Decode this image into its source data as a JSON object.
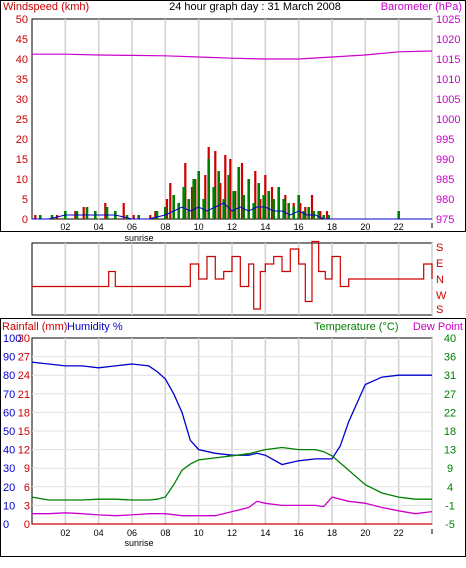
{
  "chart_data": [
    {
      "type": "bar",
      "title": "24 hour graph day : 31 March 2008",
      "left_axis": {
        "label": "Windspeed (kmh)",
        "range": [
          0,
          50
        ],
        "ticks": [
          "0",
          "5",
          "10",
          "15",
          "20",
          "25",
          "30",
          "35",
          "40",
          "45",
          "50"
        ],
        "color": "#cc0000"
      },
      "right_axis": {
        "label": "Barometer (hPa)",
        "range": [
          975,
          1025
        ],
        "ticks": [
          "975",
          "980",
          "985",
          "990",
          "995",
          "1000",
          "1005",
          "1010",
          "1015",
          "1020",
          "1025"
        ],
        "color": "#cc00cc"
      },
      "x_ticks": [
        "02",
        "04",
        "06",
        "08",
        "10",
        "12",
        "14",
        "16",
        "18",
        "20",
        "22"
      ],
      "sunrise_label": "sunrise",
      "grid": true,
      "series": [
        {
          "role": "barometer",
          "axis": "right",
          "color": "#cc00cc",
          "x": [
            0,
            2,
            4,
            6,
            8,
            10,
            12,
            14,
            16,
            18,
            20,
            22,
            24
          ],
          "values": [
            1016.2,
            1016.2,
            1016.0,
            1015.9,
            1015.8,
            1015.5,
            1015.2,
            1015.0,
            1015.0,
            1015.5,
            1016.0,
            1016.8,
            1017.0
          ]
        },
        {
          "role": "gust",
          "axis": "left",
          "color": "#cc0000",
          "x": [
            0.2,
            1.5,
            2.6,
            3.1,
            4.4,
            5.5,
            6.1,
            7.1,
            7.4,
            8.1,
            8.3,
            9.2,
            9.6,
            9.8,
            10.0,
            10.4,
            10.6,
            11.0,
            11.3,
            11.6,
            11.9,
            12.2,
            12.6,
            13.0,
            13.4,
            13.7,
            14.0,
            14.4,
            14.8,
            15.2,
            15.7,
            16.1,
            16.4,
            16.8,
            17.3,
            17.7,
            22.0
          ],
          "values": [
            1,
            1,
            2,
            3,
            4,
            4,
            1,
            1,
            2,
            5,
            9,
            14,
            8,
            10,
            8,
            11,
            18,
            17,
            9,
            16,
            15,
            7,
            14,
            4,
            12,
            5,
            11,
            8,
            6,
            6,
            4,
            4,
            3,
            6,
            2,
            2,
            1
          ]
        },
        {
          "role": "average",
          "axis": "left",
          "color": "#008000",
          "x": [
            0.5,
            1.2,
            2.0,
            2.7,
            3.3,
            3.8,
            4.5,
            5.0,
            5.7,
            6.4,
            7.5,
            8.0,
            8.5,
            8.8,
            9.1,
            9.4,
            9.7,
            10.0,
            10.3,
            10.6,
            10.9,
            11.2,
            11.5,
            11.8,
            12.1,
            12.4,
            12.7,
            13.0,
            13.3,
            13.6,
            13.9,
            14.2,
            14.5,
            14.8,
            15.1,
            15.4,
            15.7,
            16.0,
            16.3,
            16.6,
            16.9,
            17.2,
            17.5,
            17.8,
            22.0
          ],
          "values": [
            1,
            1,
            2,
            2,
            3,
            2,
            3,
            2,
            1,
            1,
            2,
            3,
            6,
            4,
            8,
            5,
            10,
            12,
            5,
            15,
            8,
            12,
            5,
            11,
            7,
            13,
            6,
            10,
            4,
            9,
            6,
            7,
            5,
            8,
            5,
            4,
            3,
            6,
            2,
            3,
            2,
            2,
            1,
            1,
            2
          ]
        },
        {
          "role": "direction-detail",
          "axis": "left",
          "color": "#0000cc",
          "x": [
            0,
            1,
            2,
            3,
            4,
            5,
            6,
            7,
            8,
            8.5,
            9,
            9.5,
            10,
            10.5,
            11,
            11.5,
            12,
            12.5,
            13,
            13.5,
            14,
            14.5,
            15,
            15.5,
            16,
            16.5,
            17,
            17.5,
            18,
            19,
            20,
            21,
            22,
            23,
            24
          ],
          "values": [
            0,
            0,
            1,
            1,
            1,
            1,
            0,
            0,
            1,
            2,
            3,
            2,
            3,
            2,
            3,
            4,
            2,
            3,
            2,
            3,
            3,
            2,
            2,
            1,
            2,
            1,
            1,
            0,
            0,
            0,
            0,
            0,
            0,
            0,
            0
          ]
        }
      ]
    },
    {
      "type": "line",
      "role": "wind-direction",
      "ticks": [
        "S",
        "E",
        "N",
        "W",
        "S"
      ],
      "color": "#cc0000",
      "x_ticks": [
        "02",
        "04",
        "06",
        "08",
        "10",
        "12",
        "14",
        "16",
        "18",
        "20",
        "22"
      ],
      "grid": true,
      "x": [
        0,
        1,
        2,
        3,
        4,
        4.6,
        5,
        6,
        7,
        8,
        9,
        9.5,
        10,
        10.5,
        11,
        11.5,
        12,
        12.5,
        13,
        13.3,
        13.7,
        14,
        14.5,
        15,
        15.5,
        16,
        16.4,
        16.8,
        17.2,
        17.6,
        18,
        18.5,
        19,
        20,
        21,
        22,
        23,
        23.5,
        24
      ],
      "values": [
        5,
        5,
        5,
        5,
        5,
        3,
        5,
        5,
        5,
        5,
        5,
        2,
        4,
        1,
        4,
        3,
        1,
        5,
        2,
        8,
        3,
        2,
        1,
        3,
        0,
        2,
        7,
        -1,
        3,
        4,
        1,
        5,
        4,
        4,
        4,
        4,
        4,
        2,
        4
      ]
    },
    {
      "type": "line",
      "left_axis_1": {
        "label": "Rainfall (mm)",
        "range": [
          0,
          30
        ],
        "ticks": [
          "0",
          "3",
          "6",
          "9",
          "12",
          "15",
          "18",
          "21",
          "24",
          "27",
          "30"
        ],
        "color": "#cc0000"
      },
      "left_axis_2": {
        "label": "Humidity %",
        "range": [
          0,
          100
        ],
        "ticks": [
          "0",
          "10",
          "20",
          "30",
          "40",
          "50",
          "60",
          "70",
          "80",
          "90",
          "100"
        ],
        "color": "#0000cc"
      },
      "right_axis": {
        "label_temperature": "Temperature (°C)",
        "label_dewpoint": "Dew Point",
        "range": [
          -5,
          40
        ],
        "ticks": [
          "-5",
          "-1",
          "4",
          "9",
          "13",
          "18",
          "22",
          "27",
          "31",
          "36",
          "40"
        ],
        "color": "#008000",
        "dewpoint_color": "#cc00cc"
      },
      "x_ticks": [
        "02",
        "04",
        "06",
        "08",
        "10",
        "12",
        "14",
        "16",
        "18",
        "20",
        "22"
      ],
      "sunrise_label": "sunrise",
      "grid": true,
      "series": [
        {
          "role": "humidity",
          "axis": "humidity",
          "color": "#0000cc",
          "x": [
            0,
            1,
            2,
            3,
            4,
            5,
            6,
            7,
            7.5,
            8,
            8.5,
            9,
            9.5,
            10,
            11,
            12,
            13,
            13.5,
            14,
            15,
            16,
            17,
            18,
            18.5,
            19,
            19.5,
            20,
            21,
            22,
            23,
            24
          ],
          "values": [
            87,
            86,
            85,
            85,
            84,
            85,
            86,
            85,
            82,
            78,
            70,
            60,
            45,
            40,
            38,
            37,
            37,
            38,
            37,
            32,
            34,
            35,
            35,
            42,
            55,
            65,
            75,
            79,
            80,
            80,
            80
          ]
        },
        {
          "role": "temperature",
          "axis": "temperature",
          "color": "#008000",
          "x": [
            0,
            1,
            2,
            3,
            4,
            5,
            6,
            7,
            7.5,
            8,
            8.5,
            9,
            9.5,
            10,
            11,
            12,
            13,
            14,
            15,
            16,
            17,
            17.5,
            18,
            19,
            20,
            21,
            22,
            23,
            24
          ],
          "values": [
            1.5,
            0.8,
            0.8,
            0.8,
            1.0,
            1.0,
            0.8,
            0.8,
            1.0,
            1.5,
            4.5,
            8.0,
            9.5,
            10.5,
            11.0,
            11.5,
            12.0,
            13.0,
            13.5,
            13.0,
            13.0,
            12.5,
            11.5,
            8.0,
            4.5,
            2.5,
            1.5,
            1.0,
            1.0
          ]
        },
        {
          "role": "dew-point",
          "axis": "temperature",
          "color": "#cc00cc",
          "x": [
            0,
            1,
            2,
            3,
            4,
            5,
            6,
            7,
            8,
            9,
            10,
            11,
            12,
            13,
            13.5,
            14,
            15,
            16,
            17,
            17.5,
            18,
            19,
            20,
            21,
            22,
            23,
            24
          ],
          "values": [
            -2.5,
            -2.5,
            -2.3,
            -2.5,
            -2.8,
            -3.0,
            -2.8,
            -2.5,
            -2.5,
            -3.0,
            -3.0,
            -3.0,
            -2.0,
            -1.0,
            0.5,
            0.0,
            -0.5,
            -0.5,
            -0.5,
            -0.8,
            1.5,
            0.5,
            0.0,
            -1.0,
            -1.8,
            -2.5,
            -2.0
          ]
        },
        {
          "role": "rainfall",
          "axis": "rainfall",
          "color": "#cc0000",
          "x": [
            0,
            24
          ],
          "values": [
            0,
            0
          ]
        }
      ]
    }
  ]
}
